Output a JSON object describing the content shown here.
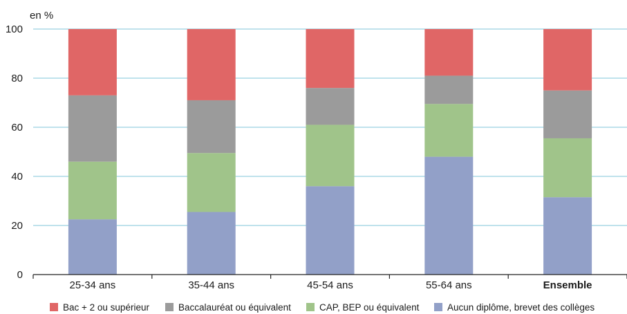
{
  "chart_data": {
    "type": "bar",
    "stacked": true,
    "unit_label": "en %",
    "ylim": [
      0,
      100
    ],
    "yticks": [
      0,
      20,
      40,
      60,
      80,
      100
    ],
    "grid": true,
    "legend_position": "bottom",
    "categories": [
      "25-34 ans",
      "35-44 ans",
      "45-54 ans",
      "55-64 ans",
      "Ensemble"
    ],
    "bold_categories": [
      "Ensemble"
    ],
    "series": [
      {
        "name": "Aucun diplôme, brevet des collèges",
        "color": "#92a0c8",
        "values": [
          22.5,
          25.5,
          36,
          48,
          31.5
        ]
      },
      {
        "name": "CAP, BEP ou équivalent",
        "color": "#a0c48a",
        "values": [
          23.5,
          24,
          25,
          21.5,
          24
        ]
      },
      {
        "name": "Baccalauréat ou équivalent",
        "color": "#9b9b9b",
        "values": [
          27,
          21.5,
          15,
          11.5,
          19.5
        ]
      },
      {
        "name": "Bac + 2 ou supérieur",
        "color": "#e06666",
        "values": [
          27,
          29,
          24,
          19,
          25
        ]
      }
    ],
    "legend_order": [
      "Bac + 2 ou supérieur",
      "Baccalauréat ou équivalent",
      "CAP, BEP ou équivalent",
      "Aucun diplôme, brevet des collèges"
    ]
  }
}
